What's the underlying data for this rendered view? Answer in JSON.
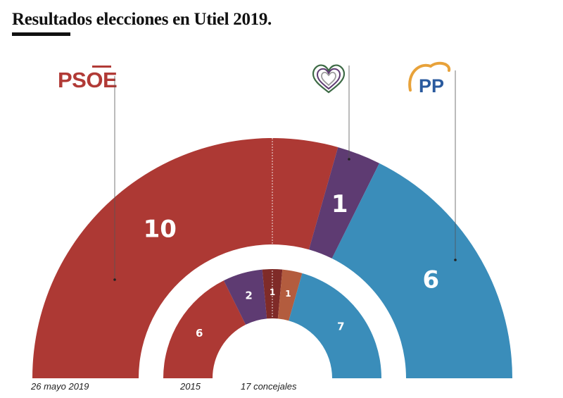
{
  "title": "Resultados elecciones en Utiel 2019.",
  "logos": {
    "psoe": "PSOE",
    "pp": "PP",
    "compromis": "heart-logo-icon"
  },
  "footer": {
    "outer_label": "26 mayo 2019",
    "inner_label": "2015",
    "seats_label": "17 concejales"
  },
  "chart_data": [
    {
      "type": "pie",
      "subtype": "semicircle-parliament",
      "ring": "outer",
      "period": "26 mayo 2019",
      "total_seats": 17,
      "series": [
        {
          "name": "PSOE",
          "value": 10,
          "color": "#ad3934"
        },
        {
          "name": "Compromís",
          "value": 1,
          "color": "#5e3b72"
        },
        {
          "name": "PP",
          "value": 6,
          "color": "#3a8dba"
        }
      ]
    },
    {
      "type": "pie",
      "subtype": "semicircle-parliament",
      "ring": "inner",
      "period": "2015",
      "total_seats": 17,
      "series": [
        {
          "value": 6,
          "color": "#ad3934"
        },
        {
          "value": 2,
          "color": "#5e3b72"
        },
        {
          "value": 1,
          "color": "#7f2b28"
        },
        {
          "value": 1,
          "color": "#b35c3e"
        },
        {
          "name": "PP",
          "value": 7,
          "color": "#3a8dba"
        }
      ]
    }
  ]
}
